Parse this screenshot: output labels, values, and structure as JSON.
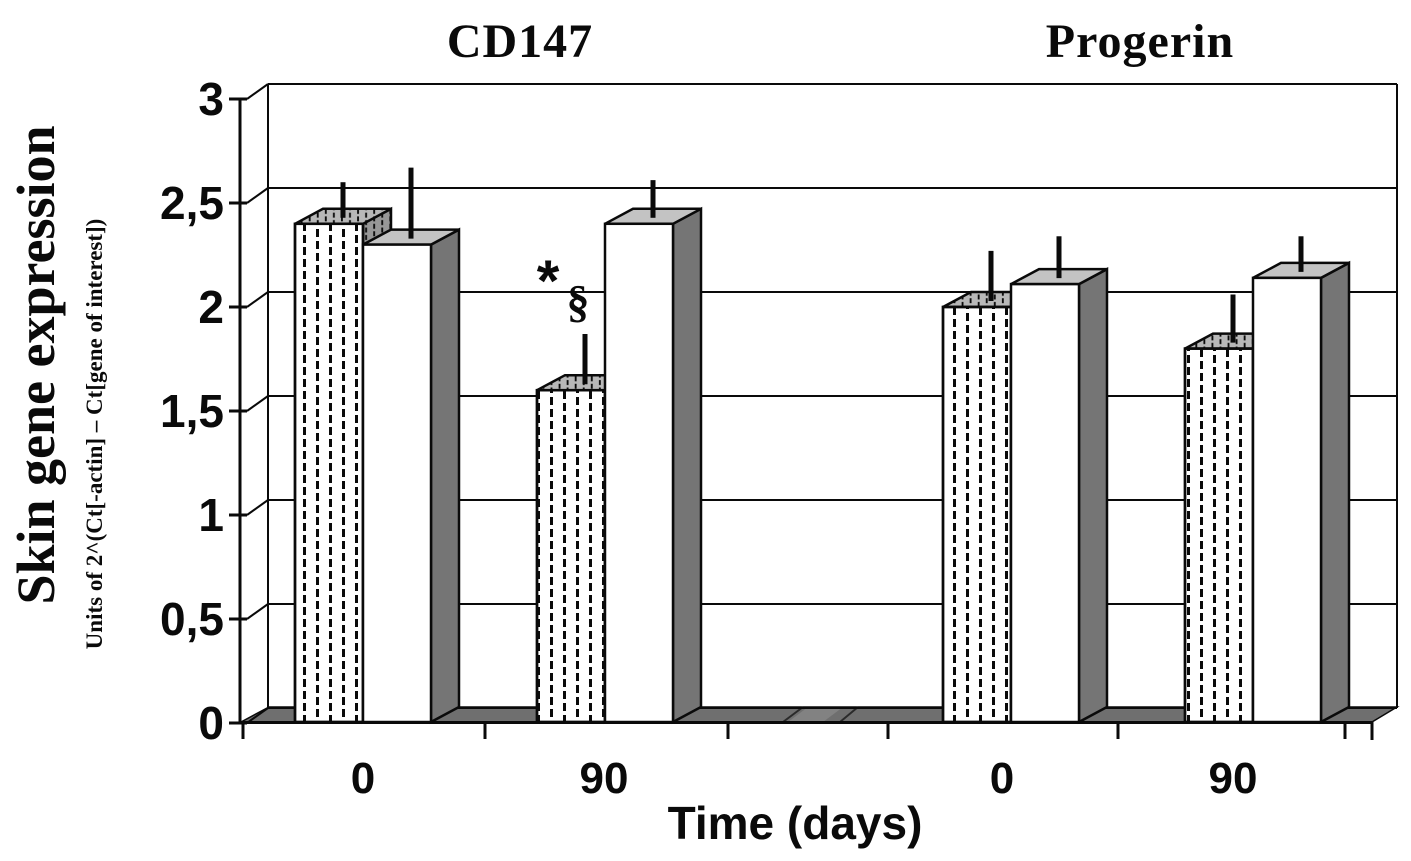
{
  "figure": {
    "panel_titles": [
      "CD147",
      "Progerin"
    ],
    "y_axis_title": "Skin gene expression",
    "y_axis_subtitle": "Units of 2^(Ct[-actin] – Ct[gene of interest])",
    "x_axis_title": "Time (days)"
  },
  "chart_data": {
    "type": "bar",
    "style_3d": true,
    "grid": true,
    "legend": "none",
    "ylim": [
      0,
      3
    ],
    "ytick_values": [
      0,
      0.5,
      1,
      1.5,
      2,
      2.5,
      3
    ],
    "ytick_labels": [
      "0",
      "0,5",
      "1",
      "1,5",
      "2",
      "2,5",
      "3"
    ],
    "xlabel": "Time (days)",
    "ylabel": "Skin gene expression",
    "ylabel_sub": "Units of 2^(Ct[-actin] – Ct[gene of interest])",
    "panels": [
      {
        "title": "CD147",
        "categories": [
          "0",
          "90"
        ],
        "series": [
          {
            "style": "stippled",
            "values": [
              2.4,
              1.6
            ],
            "errors_up": [
              0.2,
              0.27
            ]
          },
          {
            "style": "white",
            "values": [
              2.3,
              2.4
            ],
            "errors_up": [
              0.37,
              0.21
            ]
          }
        ]
      },
      {
        "title": "Progerin",
        "categories": [
          "0",
          "90"
        ],
        "series": [
          {
            "style": "stippled",
            "values": [
              2.0,
              1.8
            ],
            "errors_up": [
              0.27,
              0.26
            ]
          },
          {
            "style": "white",
            "values": [
              2.11,
              2.14
            ],
            "errors_up": [
              0.23,
              0.2
            ]
          }
        ]
      }
    ],
    "annotations": [
      {
        "symbol": "*",
        "panel": 0,
        "category": "90",
        "series_index": 0
      },
      {
        "symbol": "§",
        "panel": 0,
        "category": "90",
        "series_index": 0
      }
    ],
    "colors": {
      "ink": "#0a0a0a",
      "background": "#ffffff",
      "white_bar_front": "#ffffff",
      "white_bar_top": "#c3c3c3",
      "white_bar_side": "#757575",
      "stippled_bar_top": "#b8b8b8",
      "stippled_bar_side": "#979797",
      "floor": "#6f6f6f",
      "floor_light_patch": "#828282"
    }
  }
}
